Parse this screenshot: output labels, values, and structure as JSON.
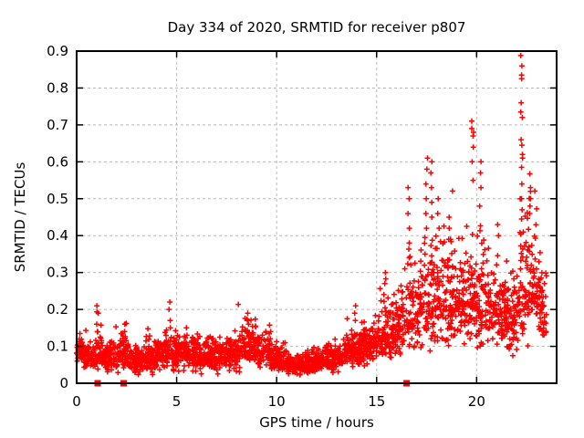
{
  "chart_data": {
    "type": "scatter",
    "title": "Day 334 of 2020, SRMTID for receiver p807",
    "xlabel": "GPS time / hours",
    "ylabel": "SRMTID / TECUs",
    "xlim": [
      0,
      24
    ],
    "ylim": [
      0,
      0.9
    ],
    "xticks": [
      [
        0,
        "0"
      ],
      [
        5,
        "5"
      ],
      [
        10,
        "10"
      ],
      [
        15,
        "15"
      ],
      [
        20,
        "20"
      ]
    ],
    "yticks": [
      [
        0,
        "0"
      ],
      [
        0.1,
        "0.1"
      ],
      [
        0.2,
        "0.2"
      ],
      [
        0.3,
        "0.3"
      ],
      [
        0.4,
        "0.4"
      ],
      [
        0.5,
        "0.5"
      ],
      [
        0.6,
        "0.6"
      ],
      [
        0.7,
        "0.7"
      ],
      [
        0.8,
        "0.8"
      ],
      [
        0.9,
        "0.9"
      ]
    ],
    "grid": true,
    "legend": "none",
    "marker": "plus",
    "marker_color": "#ff0000",
    "grid_color": "#b8b8b8",
    "border_color": "#000000",
    "background": "#ffffff",
    "seed": 33420,
    "points_per_hour": 115,
    "data_start_hour": 0.0,
    "data_end_hour": 23.5,
    "baseline_bands": [
      [
        0.0,
        0.35,
        0.085,
        0.02,
        0
      ],
      [
        0.35,
        0.9,
        0.07,
        0.022,
        0
      ],
      [
        0.9,
        1.25,
        0.085,
        0.034,
        0
      ],
      [
        1.25,
        2.2,
        0.068,
        0.024,
        0
      ],
      [
        2.2,
        2.6,
        0.078,
        0.03,
        0
      ],
      [
        2.6,
        3.3,
        0.062,
        0.02,
        0
      ],
      [
        3.3,
        4.4,
        0.072,
        0.025,
        0
      ],
      [
        4.4,
        5.0,
        0.085,
        0.03,
        0
      ],
      [
        5.0,
        6.2,
        0.078,
        0.026,
        0
      ],
      [
        6.2,
        7.2,
        0.072,
        0.026,
        0
      ],
      [
        7.2,
        8.2,
        0.08,
        0.028,
        0
      ],
      [
        8.2,
        9.0,
        0.105,
        0.032,
        0
      ],
      [
        9.0,
        9.7,
        0.082,
        0.028,
        0
      ],
      [
        9.7,
        10.5,
        0.065,
        0.022,
        0
      ],
      [
        10.5,
        11.6,
        0.048,
        0.016,
        0
      ],
      [
        11.6,
        12.4,
        0.055,
        0.018,
        0
      ],
      [
        12.4,
        13.3,
        0.067,
        0.022,
        0
      ],
      [
        13.3,
        14.2,
        0.09,
        0.03,
        0
      ],
      [
        14.2,
        15.1,
        0.105,
        0.032,
        0
      ],
      [
        15.1,
        15.8,
        0.125,
        0.04,
        1
      ],
      [
        15.8,
        16.5,
        0.15,
        0.048,
        1
      ],
      [
        16.5,
        17.1,
        0.175,
        0.055,
        1
      ],
      [
        17.1,
        18.0,
        0.21,
        0.07,
        1
      ],
      [
        18.0,
        18.9,
        0.225,
        0.075,
        1
      ],
      [
        18.9,
        19.8,
        0.23,
        0.075,
        1
      ],
      [
        19.8,
        20.6,
        0.21,
        0.065,
        1
      ],
      [
        20.6,
        21.6,
        0.19,
        0.055,
        1
      ],
      [
        21.6,
        22.1,
        0.17,
        0.055,
        1
      ],
      [
        22.1,
        22.5,
        0.24,
        0.085,
        1
      ],
      [
        22.5,
        23.1,
        0.27,
        0.085,
        1
      ],
      [
        23.1,
        23.5,
        0.195,
        0.06,
        1
      ]
    ],
    "spike_streaks": [
      [
        1.05,
        [
          0.21,
          0.19,
          0.16,
          0.14
        ]
      ],
      [
        2.4,
        [
          0.16,
          0.14
        ]
      ],
      [
        4.65,
        [
          0.22,
          0.2,
          0.17,
          0.15
        ]
      ],
      [
        5.5,
        [
          0.15,
          0.13
        ]
      ],
      [
        8.6,
        [
          0.19,
          0.17,
          0.16
        ]
      ],
      [
        13.95,
        [
          0.21,
          0.19,
          0.17
        ]
      ],
      [
        15.4,
        [
          0.3,
          0.27,
          0.24
        ]
      ],
      [
        16.6,
        [
          0.53,
          0.5,
          0.46,
          0.42,
          0.38,
          0.34
        ]
      ],
      [
        17.5,
        [
          0.61,
          0.58,
          0.54,
          0.5,
          0.46,
          0.42
        ]
      ],
      [
        17.75,
        [
          0.6,
          0.57,
          0.53,
          0.49,
          0.45
        ]
      ],
      [
        18.1,
        [
          0.5,
          0.46,
          0.42
        ]
      ],
      [
        18.65,
        [
          0.45,
          0.42,
          0.39
        ]
      ],
      [
        19.8,
        [
          0.71,
          0.69,
          0.68,
          0.67,
          0.64,
          0.6,
          0.55
        ]
      ],
      [
        20.2,
        [
          0.6,
          0.57,
          0.53,
          0.48
        ]
      ],
      [
        21.1,
        [
          0.43,
          0.4
        ]
      ],
      [
        22.25,
        [
          0.895,
          0.86,
          0.835,
          0.825,
          0.76,
          0.735,
          0.72,
          0.66,
          0.645,
          0.62,
          0.61,
          0.585,
          0.54,
          0.5,
          0.47
        ]
      ],
      [
        22.7,
        [
          0.53,
          0.52,
          0.5,
          0.48,
          0.46
        ]
      ]
    ],
    "streak_x_jitter": 0.05,
    "event_markers": {
      "shape": "filled-square",
      "color": "#ff0000",
      "y": 0,
      "x": [
        1.05,
        2.35,
        16.5
      ],
      "size": 7
    }
  }
}
